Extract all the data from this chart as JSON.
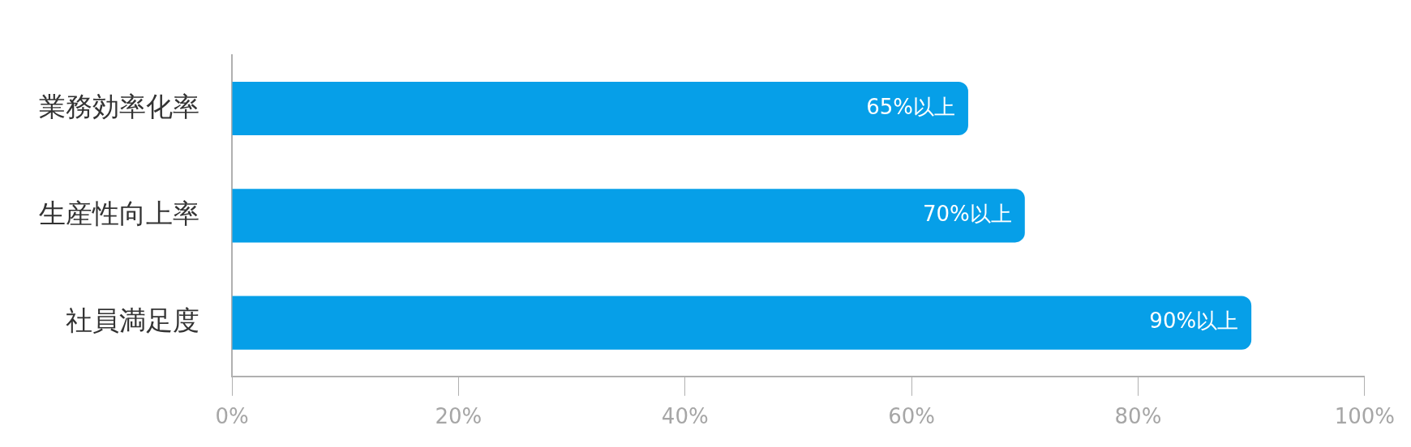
{
  "chart_data": {
    "type": "bar",
    "orientation": "horizontal",
    "categories": [
      "業務効率化率",
      "生産性向上率",
      "社員満足度"
    ],
    "values": [
      65,
      70,
      90
    ],
    "color": "#069fe8",
    "value_labels": [
      "65%以上",
      "70%以上",
      "90%以上"
    ],
    "xlim": [
      0,
      100
    ],
    "xticks": [
      {
        "value": 0,
        "label": "0%"
      },
      {
        "value": 20,
        "label": "20%"
      },
      {
        "value": 40,
        "label": "40%"
      },
      {
        "value": 60,
        "label": "60%"
      },
      {
        "value": 80,
        "label": "80%"
      },
      {
        "value": 100,
        "label": "100%"
      }
    ],
    "grid": false,
    "legend": false
  }
}
